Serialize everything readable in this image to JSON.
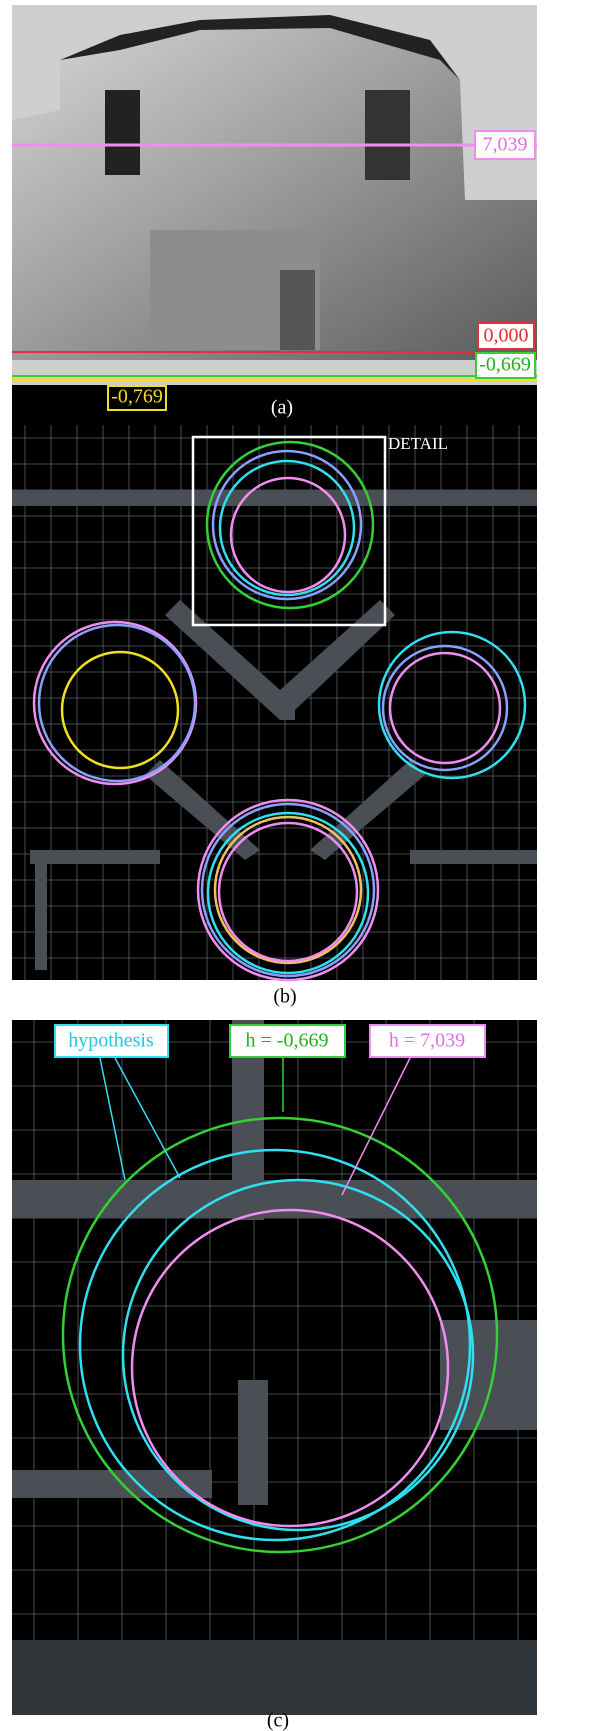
{
  "panel_a": {
    "level_high": "7,039",
    "level_zero": "0,000",
    "level_low": "-0,669",
    "level_lowest": "-0,769",
    "caption": "(a)"
  },
  "panel_b": {
    "detail": "DETAIL",
    "caption": "(b)"
  },
  "panel_c": {
    "hypothesis": "hypothesis",
    "h_low": "h = -0,669",
    "h_high": "h = 7,039",
    "caption": "(c)"
  }
}
